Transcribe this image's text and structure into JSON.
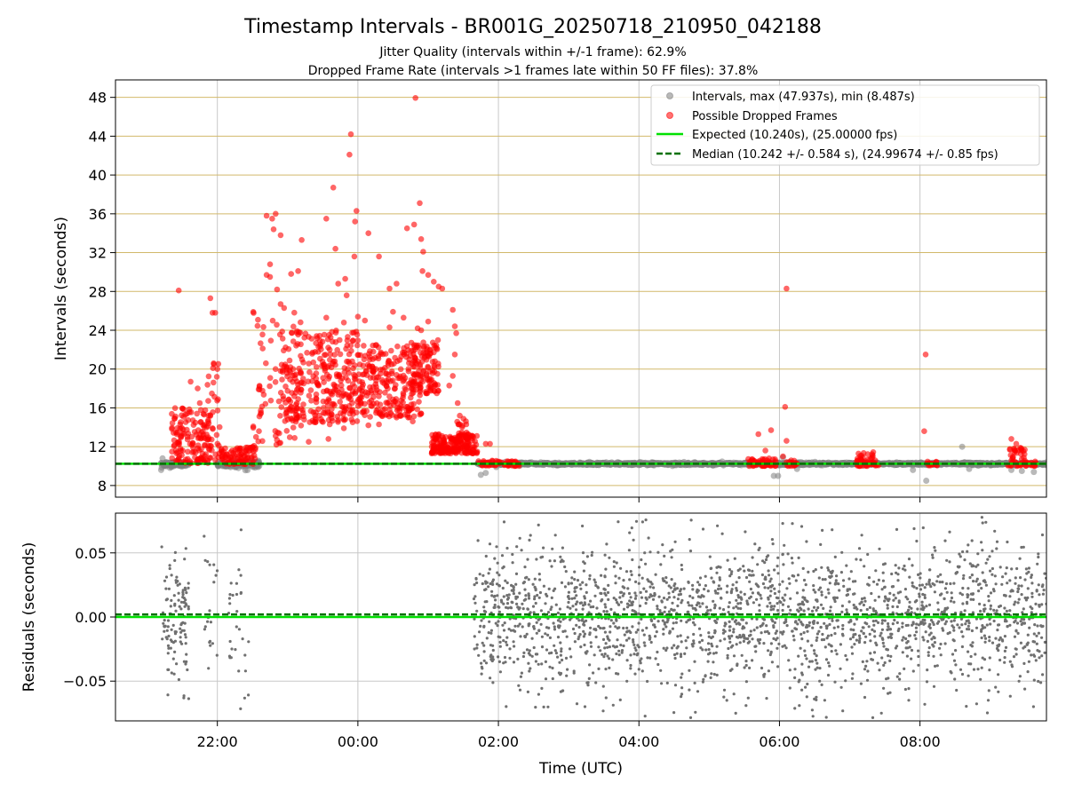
{
  "figure": {
    "title": "Timestamp Intervals - BR001G_20250718_210950_042188",
    "subtitle_1": "Jitter Quality (intervals within +/-1 frame): 62.9%",
    "subtitle_2": "Dropped Frame Rate (intervals >1 frames late within 50 FF files): 37.8%",
    "xlabel": "Time (UTC)"
  },
  "colors": {
    "intervals": "#808080",
    "dropped": "#ff0000",
    "expected": "#00e000",
    "median": "#007000",
    "hgrid": "#d2b96a",
    "vgrid": "#c8c8c8",
    "residuals": "#707070"
  },
  "chart_data": [
    {
      "type": "scatter",
      "ylabel": "Intervals (seconds)",
      "xlim_hours": [
        20.55,
        33.8
      ],
      "ylim": [
        6.8,
        49.8
      ],
      "x_ticks": [
        {
          "value": 22,
          "label": "22:00"
        },
        {
          "value": 24,
          "label": "00:00"
        },
        {
          "value": 26,
          "label": "02:00"
        },
        {
          "value": 28,
          "label": "04:00"
        },
        {
          "value": 30,
          "label": "06:00"
        },
        {
          "value": 32,
          "label": "08:00"
        }
      ],
      "y_ticks": [
        8,
        12,
        16,
        20,
        24,
        28,
        32,
        36,
        40,
        44,
        48
      ],
      "show_x_ticklabels": false,
      "grid": {
        "horizontal": true,
        "vertical": true
      },
      "legend_position": "top-right",
      "legend": [
        "Intervals, max (47.937s), min (8.487s)",
        "Possible Dropped Frames",
        "Expected (10.240s), (25.00000 fps)",
        "Median (10.242 +/- 0.584 s), (24.99674 +/- 0.85 fps)"
      ],
      "expected_line": 10.24,
      "median_line": 10.242,
      "max_interval": 47.937,
      "min_interval": 8.487,
      "series": [
        {
          "name": "Intervals, max (47.937s), min (8.487s)",
          "kind": "normal",
          "segments": [
            {
              "x_start": 21.2,
              "x_end": 21.6,
              "y_center": 10.2,
              "spread": 0.25
            },
            {
              "x_start": 22.0,
              "x_end": 22.6,
              "y_center": 10.2,
              "spread": 0.3
            },
            {
              "x_start": 25.7,
              "x_end": 33.8,
              "y_center": 10.24,
              "spread": 0.12
            }
          ],
          "points": [
            {
              "x": 21.2,
              "y": 9.6
            },
            {
              "x": 21.22,
              "y": 10.8
            },
            {
              "x": 22.3,
              "y": 9.8
            },
            {
              "x": 25.75,
              "y": 9.1
            },
            {
              "x": 25.82,
              "y": 9.3
            },
            {
              "x": 25.97,
              "y": 9.9
            },
            {
              "x": 29.92,
              "y": 9.0
            },
            {
              "x": 29.98,
              "y": 9.0
            },
            {
              "x": 30.05,
              "y": 10.9
            },
            {
              "x": 30.25,
              "y": 9.7
            },
            {
              "x": 31.9,
              "y": 9.6
            },
            {
              "x": 32.09,
              "y": 8.49
            },
            {
              "x": 32.6,
              "y": 12.0
            },
            {
              "x": 32.7,
              "y": 9.7
            },
            {
              "x": 33.3,
              "y": 9.6
            },
            {
              "x": 33.45,
              "y": 9.5
            },
            {
              "x": 33.62,
              "y": 9.4
            }
          ]
        },
        {
          "name": "Possible Dropped Frames",
          "kind": "dropped",
          "clusters": [
            {
              "x_start": 21.35,
              "x_end": 21.9,
              "y_min": 10.3,
              "y_max": 16.0,
              "count": 150
            },
            {
              "x_start": 21.85,
              "x_end": 22.05,
              "y_min": 10.3,
              "y_max": 21.5,
              "count": 30
            },
            {
              "x_start": 22.05,
              "x_end": 22.55,
              "y_min": 10.2,
              "y_max": 12.0,
              "count": 90
            },
            {
              "x_start": 22.5,
              "x_end": 23.2,
              "y_min": 12.0,
              "y_max": 26.0,
              "count": 70
            },
            {
              "x_start": 22.9,
              "x_end": 24.0,
              "y_min": 14.5,
              "y_max": 24.0,
              "count": 300
            },
            {
              "x_start": 24.0,
              "x_end": 24.9,
              "y_min": 15.0,
              "y_max": 22.5,
              "count": 240
            },
            {
              "x_start": 24.75,
              "x_end": 25.15,
              "y_min": 17.5,
              "y_max": 23.0,
              "count": 110
            },
            {
              "x_start": 25.05,
              "x_end": 25.7,
              "y_min": 11.3,
              "y_max": 13.3,
              "count": 200
            },
            {
              "x_start": 25.4,
              "x_end": 25.55,
              "y_min": 13.0,
              "y_max": 15.0,
              "count": 15
            },
            {
              "x_start": 25.7,
              "x_end": 26.3,
              "y_min": 10.0,
              "y_max": 10.6,
              "count": 60
            },
            {
              "x_start": 29.55,
              "x_end": 29.95,
              "y_min": 10.0,
              "y_max": 10.8,
              "count": 60
            },
            {
              "x_start": 30.1,
              "x_end": 30.25,
              "y_min": 10.0,
              "y_max": 10.6,
              "count": 15
            },
            {
              "x_start": 31.1,
              "x_end": 31.35,
              "y_min": 10.0,
              "y_max": 11.5,
              "count": 45
            },
            {
              "x_start": 31.35,
              "x_end": 31.42,
              "y_min": 10.0,
              "y_max": 10.6,
              "count": 6
            },
            {
              "x_start": 32.1,
              "x_end": 32.25,
              "y_min": 10.0,
              "y_max": 10.5,
              "count": 15
            },
            {
              "x_start": 33.25,
              "x_end": 33.5,
              "y_min": 10.0,
              "y_max": 12.0,
              "count": 40
            },
            {
              "x_start": 33.5,
              "x_end": 33.65,
              "y_min": 10.0,
              "y_max": 10.5,
              "count": 15
            }
          ],
          "points": [
            {
              "x": 21.45,
              "y": 28.1
            },
            {
              "x": 21.9,
              "y": 27.3
            },
            {
              "x": 21.93,
              "y": 25.8
            },
            {
              "x": 21.97,
              "y": 25.8
            },
            {
              "x": 21.95,
              "y": 20.5
            },
            {
              "x": 22.0,
              "y": 20.0
            },
            {
              "x": 22.7,
              "y": 35.8
            },
            {
              "x": 22.78,
              "y": 35.5
            },
            {
              "x": 22.83,
              "y": 36.0
            },
            {
              "x": 22.8,
              "y": 34.4
            },
            {
              "x": 22.9,
              "y": 33.8
            },
            {
              "x": 23.2,
              "y": 33.3
            },
            {
              "x": 22.75,
              "y": 30.8
            },
            {
              "x": 22.7,
              "y": 29.7
            },
            {
              "x": 22.75,
              "y": 29.5
            },
            {
              "x": 23.05,
              "y": 29.8
            },
            {
              "x": 23.15,
              "y": 30.1
            },
            {
              "x": 22.85,
              "y": 28.2
            },
            {
              "x": 22.9,
              "y": 26.7
            },
            {
              "x": 22.95,
              "y": 26.3
            },
            {
              "x": 23.55,
              "y": 35.5
            },
            {
              "x": 23.65,
              "y": 38.7
            },
            {
              "x": 23.68,
              "y": 32.4
            },
            {
              "x": 23.72,
              "y": 28.8
            },
            {
              "x": 23.82,
              "y": 29.3
            },
            {
              "x": 23.84,
              "y": 27.6
            },
            {
              "x": 23.55,
              "y": 25.3
            },
            {
              "x": 23.8,
              "y": 24.8
            },
            {
              "x": 23.88,
              "y": 42.1
            },
            {
              "x": 23.9,
              "y": 44.2
            },
            {
              "x": 23.95,
              "y": 31.6
            },
            {
              "x": 23.98,
              "y": 36.3
            },
            {
              "x": 23.96,
              "y": 35.2
            },
            {
              "x": 24.0,
              "y": 25.4
            },
            {
              "x": 24.1,
              "y": 25.0
            },
            {
              "x": 24.15,
              "y": 34.0
            },
            {
              "x": 24.3,
              "y": 31.6
            },
            {
              "x": 24.45,
              "y": 24.3
            },
            {
              "x": 24.5,
              "y": 25.9
            },
            {
              "x": 24.45,
              "y": 28.3
            },
            {
              "x": 24.55,
              "y": 28.8
            },
            {
              "x": 24.7,
              "y": 34.5
            },
            {
              "x": 24.8,
              "y": 34.9
            },
            {
              "x": 24.65,
              "y": 25.3
            },
            {
              "x": 24.85,
              "y": 24.2
            },
            {
              "x": 24.9,
              "y": 24.0
            },
            {
              "x": 25.0,
              "y": 24.9
            },
            {
              "x": 24.88,
              "y": 37.1
            },
            {
              "x": 24.9,
              "y": 33.4
            },
            {
              "x": 24.93,
              "y": 32.1
            },
            {
              "x": 24.92,
              "y": 30.1
            },
            {
              "x": 25.0,
              "y": 29.7
            },
            {
              "x": 25.08,
              "y": 29.0
            },
            {
              "x": 25.15,
              "y": 28.5
            },
            {
              "x": 25.2,
              "y": 28.3
            },
            {
              "x": 24.82,
              "y": 47.94
            },
            {
              "x": 25.35,
              "y": 26.1
            },
            {
              "x": 25.38,
              "y": 24.4
            },
            {
              "x": 25.4,
              "y": 23.7
            },
            {
              "x": 25.38,
              "y": 21.5
            },
            {
              "x": 25.35,
              "y": 19.3
            },
            {
              "x": 25.3,
              "y": 18.3
            },
            {
              "x": 25.42,
              "y": 16.5
            },
            {
              "x": 25.45,
              "y": 15.2
            },
            {
              "x": 25.43,
              "y": 14.3
            },
            {
              "x": 24.75,
              "y": 15.9
            },
            {
              "x": 24.78,
              "y": 14.6
            },
            {
              "x": 24.3,
              "y": 14.3
            },
            {
              "x": 23.6,
              "y": 14.3
            },
            {
              "x": 23.58,
              "y": 12.8
            },
            {
              "x": 23.8,
              "y": 13.9
            },
            {
              "x": 24.15,
              "y": 14.2
            },
            {
              "x": 23.1,
              "y": 12.9
            },
            {
              "x": 23.3,
              "y": 12.5
            },
            {
              "x": 22.55,
              "y": 13.0
            },
            {
              "x": 22.6,
              "y": 18.2
            },
            {
              "x": 21.62,
              "y": 18.7
            },
            {
              "x": 21.72,
              "y": 18.0
            },
            {
              "x": 21.75,
              "y": 16.5
            },
            {
              "x": 25.82,
              "y": 12.3
            },
            {
              "x": 25.88,
              "y": 12.3
            },
            {
              "x": 29.7,
              "y": 13.3
            },
            {
              "x": 29.88,
              "y": 13.7
            },
            {
              "x": 29.8,
              "y": 11.6
            },
            {
              "x": 30.1,
              "y": 28.3
            },
            {
              "x": 30.08,
              "y": 16.1
            },
            {
              "x": 30.1,
              "y": 12.6
            },
            {
              "x": 30.05,
              "y": 11.0
            },
            {
              "x": 32.08,
              "y": 21.5
            },
            {
              "x": 32.06,
              "y": 13.6
            },
            {
              "x": 33.3,
              "y": 12.8
            },
            {
              "x": 33.37,
              "y": 12.3
            }
          ]
        }
      ]
    },
    {
      "type": "scatter",
      "ylabel": "Residuals (seconds)",
      "xlim_hours": [
        20.55,
        33.8
      ],
      "ylim": [
        -0.081,
        0.081
      ],
      "x_ticks": [
        {
          "value": 22,
          "label": "22:00"
        },
        {
          "value": 24,
          "label": "00:00"
        },
        {
          "value": 26,
          "label": "02:00"
        },
        {
          "value": 28,
          "label": "04:00"
        },
        {
          "value": 30,
          "label": "06:00"
        },
        {
          "value": 32,
          "label": "08:00"
        }
      ],
      "y_ticks": [
        {
          "value": 0.05,
          "label": "0.05"
        },
        {
          "value": 0.0,
          "label": "0.00"
        },
        {
          "value": -0.05,
          "label": "−0.05"
        }
      ],
      "grid": {
        "horizontal": true,
        "vertical": true
      },
      "expected_line": 0.0,
      "median_line": 0.002,
      "series": [
        {
          "name": "",
          "kind": "residuals",
          "clusters": [
            {
              "x_start": 21.2,
              "x_end": 21.6,
              "y_sd": 0.025,
              "count": 110
            },
            {
              "x_start": 21.8,
              "x_end": 22.0,
              "y_sd": 0.03,
              "count": 20
            },
            {
              "x_start": 22.15,
              "x_end": 22.45,
              "y_sd": 0.035,
              "count": 30
            },
            {
              "x_start": 25.65,
              "x_end": 33.8,
              "y_sd": 0.028,
              "count": 2200
            }
          ]
        }
      ]
    }
  ]
}
